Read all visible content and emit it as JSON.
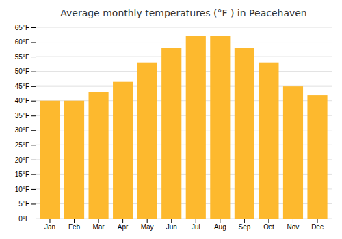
{
  "chart_data": {
    "type": "bar",
    "title": "Average monthly temperatures (°F ) in Peacehaven",
    "categories": [
      "Jan",
      "Feb",
      "Mar",
      "Apr",
      "May",
      "Jun",
      "Jul",
      "Aug",
      "Sep",
      "Oct",
      "Nov",
      "Dec"
    ],
    "values": [
      40.0,
      40.0,
      43.0,
      46.5,
      53.0,
      58.0,
      62.0,
      62.0,
      58.0,
      53.0,
      45.0,
      42.0
    ],
    "color": "#FDB92E",
    "ylim": [
      0,
      65
    ],
    "yticks": [
      {
        "value": 0,
        "label": "0°F"
      },
      {
        "value": 5,
        "label": "5°F"
      },
      {
        "value": 10,
        "label": "10°F"
      },
      {
        "value": 15,
        "label": "15°F"
      },
      {
        "value": 20,
        "label": "20°F"
      },
      {
        "value": 25,
        "label": "25°F"
      },
      {
        "value": 30,
        "label": "30°F"
      },
      {
        "value": 35,
        "label": "35°F"
      },
      {
        "value": 40,
        "label": "40°F"
      },
      {
        "value": 45,
        "label": "45°F"
      },
      {
        "value": 50,
        "label": "50°F"
      },
      {
        "value": 55,
        "label": "55°F"
      },
      {
        "value": 60,
        "label": "60°F"
      },
      {
        "value": 65,
        "label": "65°F"
      }
    ],
    "grid": true
  }
}
